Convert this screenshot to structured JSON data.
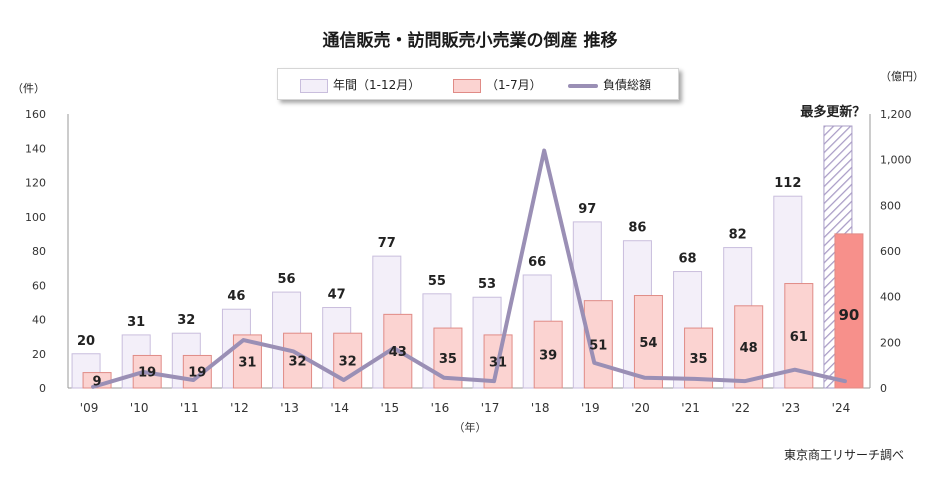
{
  "title": "通信販売・訪問販売小売業の倒産 推移",
  "legend": {
    "annual": "年間（1-12月）",
    "jan_jul": "（1-7月）",
    "liabilities": "負債総額"
  },
  "left_unit": "（件）",
  "right_unit": "（億円）",
  "x_unit": "（年）",
  "annotation_2024": "最多更新？",
  "source": "東京商工リサーチ調べ",
  "colors": {
    "annual_fill": "#f3eff9",
    "annual_stroke": "#c9bedd",
    "jan_jul_fill": "#fbd3d1",
    "jan_jul_stroke": "#e08b86",
    "jan_jul_2024_fill": "#f7908b",
    "line": "#9a8fb5"
  },
  "chart_data": {
    "type": "bar",
    "title": "通信販売・訪問販売小売業の倒産 推移",
    "categories": [
      "'09",
      "'10",
      "'11",
      "'12",
      "'13",
      "'14",
      "'15",
      "'16",
      "'17",
      "'18",
      "'19",
      "'20",
      "'21",
      "'22",
      "'23",
      "'24"
    ],
    "series": [
      {
        "name": "年間（1-12月）",
        "type": "bar",
        "axis": "left",
        "values": [
          20,
          31,
          32,
          46,
          56,
          47,
          77,
          55,
          53,
          66,
          97,
          86,
          68,
          82,
          112,
          null
        ]
      },
      {
        "name": "（1-7月）",
        "type": "bar",
        "axis": "left",
        "values": [
          9,
          19,
          19,
          31,
          32,
          32,
          43,
          35,
          31,
          39,
          51,
          54,
          35,
          48,
          61,
          90
        ]
      },
      {
        "name": "負債総額",
        "type": "line",
        "axis": "right",
        "values": [
          5,
          70,
          35,
          210,
          160,
          35,
          175,
          45,
          30,
          1040,
          110,
          45,
          40,
          30,
          80,
          30
        ]
      }
    ],
    "left_axis": {
      "ticks": [
        "0",
        "20",
        "40",
        "60",
        "80",
        "100",
        "120",
        "140",
        "160"
      ],
      "ylim": [
        0,
        160
      ]
    },
    "right_axis": {
      "ticks": [
        "0",
        "200",
        "400",
        "600",
        "800",
        "1,000",
        "1,200"
      ],
      "ylim": [
        0,
        1200
      ]
    },
    "xlabel": "（年）",
    "annotation": "最多更新？"
  }
}
